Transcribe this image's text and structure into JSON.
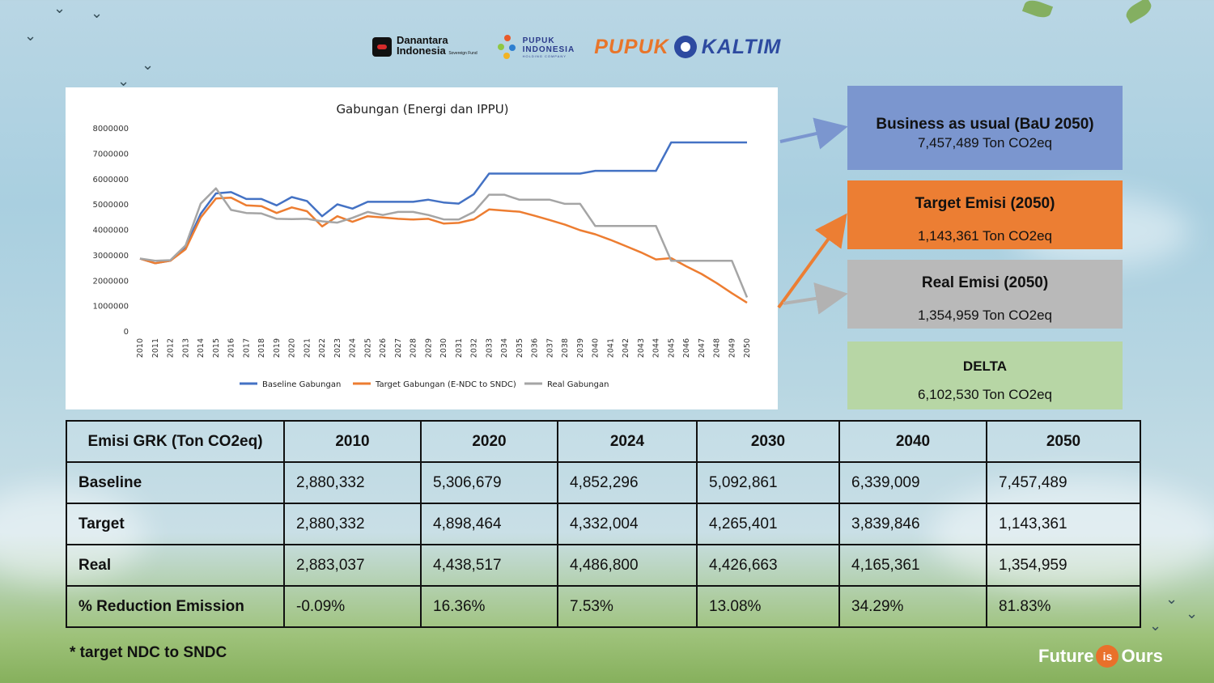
{
  "header": {
    "logo1_name": "Danantara",
    "logo1_name2": "Indonesia",
    "logo1_sub": "Sovereign Fund",
    "logo2_name": "PUPUK",
    "logo2_name2": "INDONESIA",
    "logo2_sub": "HOLDING COMPANY",
    "logo3_part1": "PUPUK",
    "logo3_part2": "KALTIM"
  },
  "chart_data": {
    "type": "line",
    "title": "Gabungan (Energi dan IPPU)",
    "xlabel": "",
    "ylabel": "",
    "ylim": [
      0,
      8000000
    ],
    "y_ticks": [
      "8000000",
      "7000000",
      "6000000",
      "5000000",
      "4000000",
      "3000000",
      "2000000",
      "1000000",
      "0"
    ],
    "x": [
      "2010",
      "2011",
      "2012",
      "2013",
      "2014",
      "2015",
      "2016",
      "2017",
      "2018",
      "2019",
      "2020",
      "2021",
      "2022",
      "2023",
      "2024",
      "2025",
      "2026",
      "2027",
      "2028",
      "2029",
      "2030",
      "2031",
      "2032",
      "2033",
      "2034",
      "2035",
      "2036",
      "2037",
      "2038",
      "2039",
      "2040",
      "2041",
      "2042",
      "2043",
      "2044",
      "2045",
      "2046",
      "2047",
      "2048",
      "2049",
      "2050"
    ],
    "series": [
      {
        "name": "Baseline Gabungan",
        "color": "#4472c4",
        "values": [
          2880332,
          2700000,
          2800000,
          3350000,
          4650000,
          5450000,
          5500000,
          5230000,
          5230000,
          4980000,
          5306679,
          5150000,
          4550000,
          5020000,
          4852296,
          5120000,
          5120000,
          5120000,
          5120000,
          5200000,
          5092861,
          5050000,
          5420000,
          6230000,
          6230000,
          6230000,
          6230000,
          6230000,
          6230000,
          6230000,
          6339009,
          6339009,
          6339009,
          6339009,
          6339009,
          7457489,
          7457489,
          7457489,
          7457489,
          7457489,
          7457489
        ]
      },
      {
        "name": "Target Gabungan (E-NDC to SNDC)",
        "color": "#ed7d31",
        "values": [
          2880332,
          2700000,
          2800000,
          3250000,
          4500000,
          5250000,
          5280000,
          4980000,
          4950000,
          4680000,
          4898464,
          4750000,
          4150000,
          4550000,
          4332004,
          4550000,
          4500000,
          4450000,
          4420000,
          4450000,
          4265401,
          4290000,
          4430000,
          4820000,
          4770000,
          4730000,
          4570000,
          4400000,
          4220000,
          4000000,
          3839846,
          3620000,
          3380000,
          3130000,
          2850000,
          2900000,
          2580000,
          2280000,
          1920000,
          1520000,
          1143361
        ]
      },
      {
        "name": "Real Gabungan",
        "color": "#a5a5a5",
        "values": [
          2883037,
          2800000,
          2820000,
          3400000,
          5050000,
          5650000,
          4800000,
          4680000,
          4660000,
          4450000,
          4438517,
          4450000,
          4350000,
          4300000,
          4486800,
          4720000,
          4600000,
          4720000,
          4720000,
          4600000,
          4426663,
          4420000,
          4720000,
          5400000,
          5400000,
          5200000,
          5200000,
          5200000,
          5040000,
          5040000,
          4165361,
          4165361,
          4165361,
          4165361,
          4165361,
          2800000,
          2800000,
          2800000,
          2800000,
          2800000,
          1354959
        ]
      }
    ]
  },
  "cards": [
    {
      "title": "Business as usual (BaU 2050)",
      "value": "7,457,489 Ton CO2eq",
      "color": "#7b96cf"
    },
    {
      "title": "Target Emisi (2050)",
      "value": "1,143,361 Ton CO2eq",
      "color": "#ec7e33"
    },
    {
      "title": "Real Emisi (2050)",
      "value": "1,354,959 Ton CO2eq",
      "color": "#b9b9b9"
    },
    {
      "title": "DELTA",
      "value": "6,102,530 Ton CO2eq",
      "color": "#b7d6a5"
    }
  ],
  "table": {
    "headers": [
      "Emisi GRK (Ton CO2eq)",
      "2010",
      "2020",
      "2024",
      "2030",
      "2040",
      "2050"
    ],
    "rows": [
      [
        "Baseline",
        "2,880,332",
        "5,306,679",
        "4,852,296",
        "5,092,861",
        "6,339,009",
        "7,457,489"
      ],
      [
        "Target",
        "2,880,332",
        "4,898,464",
        "4,332,004",
        "4,265,401",
        "3,839,846",
        "1,143,361"
      ],
      [
        "Real",
        "2,883,037",
        "4,438,517",
        "4,486,800",
        "4,426,663",
        "4,165,361",
        "1,354,959"
      ],
      [
        "% Reduction Emission",
        "-0.09%",
        "16.36%",
        "7.53%",
        "13.08%",
        "34.29%",
        "81.83%"
      ]
    ]
  },
  "footnote": "* target NDC to SNDC",
  "brand": {
    "part1": "Future",
    "part2": "is",
    "part3": "Ours"
  }
}
